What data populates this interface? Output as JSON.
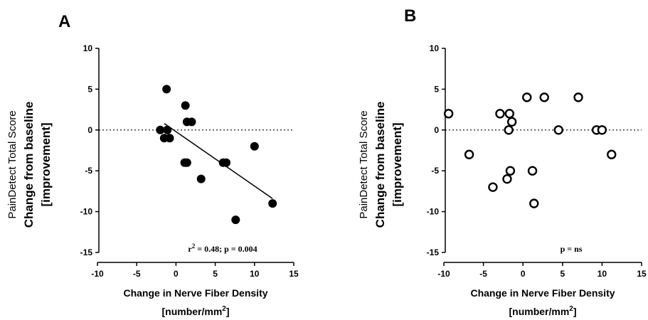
{
  "chart_data": [
    {
      "type": "scatter",
      "panel_label": "A",
      "xlabel_line1": "Change in Nerve Fiber Density",
      "xlabel_line2_prefix": "[number/mm",
      "xlabel_line2_sup": "2",
      "xlabel_line2_suffix": "]",
      "ylabel_line1": "PainDetect Total Score",
      "ylabel_line2": "Change from baseline",
      "ylabel_line3": "[improvement]",
      "xlim": [
        -10,
        15
      ],
      "ylim": [
        -15,
        10
      ],
      "xticks": [
        "-10",
        "-5",
        "0",
        "5",
        "10",
        "15"
      ],
      "yticks": [
        "10",
        "5",
        "0",
        "-5",
        "-10",
        "-15"
      ],
      "marker": "filled-circle",
      "reference_line_y": 0,
      "points": [
        {
          "x": -1.2,
          "y": 5
        },
        {
          "x": 1.2,
          "y": 3
        },
        {
          "x": 1.4,
          "y": 1
        },
        {
          "x": 2.0,
          "y": 1
        },
        {
          "x": -2.0,
          "y": 0
        },
        {
          "x": -1.1,
          "y": 0
        },
        {
          "x": -1.5,
          "y": -1
        },
        {
          "x": -0.8,
          "y": -1
        },
        {
          "x": 1.1,
          "y": -4
        },
        {
          "x": 1.4,
          "y": -4
        },
        {
          "x": 3.2,
          "y": -6
        },
        {
          "x": 6.0,
          "y": -4
        },
        {
          "x": 6.4,
          "y": -4
        },
        {
          "x": 10.0,
          "y": -2
        },
        {
          "x": 7.6,
          "y": -11
        },
        {
          "x": 12.3,
          "y": -9
        }
      ],
      "fit_line": {
        "x1": -1.5,
        "y1": 0.8,
        "x2": 12.3,
        "y2": -8.4
      },
      "annotation_prefix": "r",
      "annotation_sup": "2",
      "annotation_suffix": " = 0.48; p = 0.004"
    },
    {
      "type": "scatter",
      "panel_label": "B",
      "xlabel_line1": "Change in Nerve Fiber Density",
      "xlabel_line2_prefix": "[number/mm",
      "xlabel_line2_sup": "2",
      "xlabel_line2_suffix": "]",
      "ylabel_line1": "PainDetect Total Score",
      "ylabel_line2": "Change from baseline",
      "ylabel_line3": "[improvement]",
      "xlim": [
        -10,
        15
      ],
      "ylim": [
        -15,
        10
      ],
      "xticks": [
        "-10",
        "-5",
        "0",
        "5",
        "10",
        "15"
      ],
      "yticks": [
        "10",
        "5",
        "0",
        "-5",
        "-10",
        "-15"
      ],
      "marker": "open-circle",
      "reference_line_y": 0,
      "points": [
        {
          "x": -9.4,
          "y": 2
        },
        {
          "x": -2.9,
          "y": 2
        },
        {
          "x": -1.7,
          "y": 2
        },
        {
          "x": 0.5,
          "y": 4
        },
        {
          "x": 2.7,
          "y": 4
        },
        {
          "x": 7.0,
          "y": 4
        },
        {
          "x": -1.4,
          "y": 1
        },
        {
          "x": -1.8,
          "y": 0
        },
        {
          "x": 4.5,
          "y": 0
        },
        {
          "x": 9.3,
          "y": 0
        },
        {
          "x": 10.0,
          "y": 0
        },
        {
          "x": -6.8,
          "y": -3
        },
        {
          "x": 11.2,
          "y": -3
        },
        {
          "x": -1.6,
          "y": -5
        },
        {
          "x": 1.2,
          "y": -5
        },
        {
          "x": -2.0,
          "y": -6
        },
        {
          "x": -3.8,
          "y": -7
        },
        {
          "x": 1.4,
          "y": -9
        }
      ],
      "annotation_prefix": "p = ns",
      "annotation_sup": "",
      "annotation_suffix": ""
    }
  ]
}
